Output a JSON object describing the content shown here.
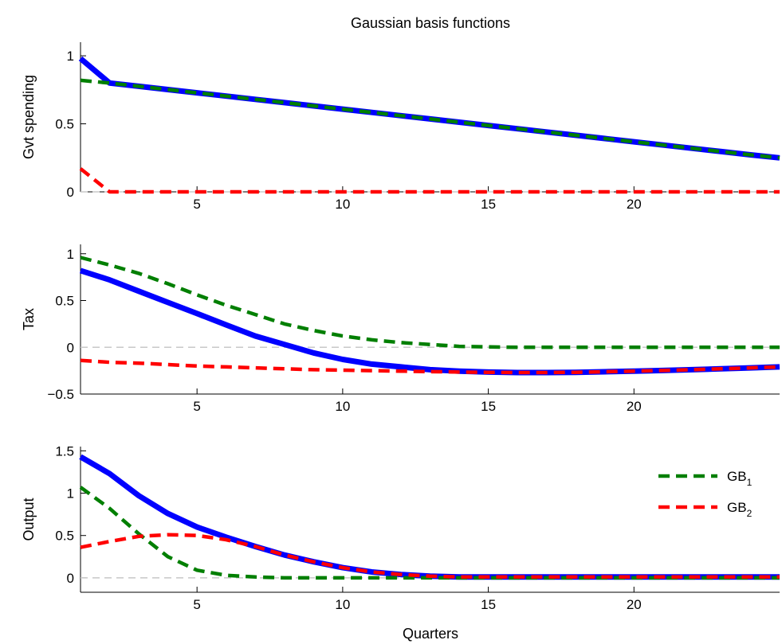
{
  "title": "Gaussian basis functions",
  "xlabel": "Quarters",
  "colors": {
    "total": "#0000ff",
    "gb1": "#007f00",
    "gb2": "#ff0000",
    "zero": "#c8c8c8"
  },
  "legend": {
    "placement": "upper-right of bottom panel",
    "items": [
      {
        "base": "GB",
        "sub": "1",
        "color": "#007f00"
      },
      {
        "base": "GB",
        "sub": "2",
        "color": "#ff0000"
      }
    ]
  },
  "chart_data": [
    {
      "type": "line",
      "ylabel": "Gvt spending",
      "xlim": [
        1,
        25
      ],
      "ylim": [
        0,
        1.1
      ],
      "yticks": [
        0,
        0.5,
        1
      ],
      "ytick_labels": [
        "0",
        "0.5",
        "1"
      ],
      "xticks": [
        5,
        10,
        15,
        20
      ],
      "xtick_labels": [
        "5",
        "10",
        "15",
        "20"
      ],
      "zero_line": true,
      "x": [
        1,
        2,
        3,
        4,
        5,
        6,
        7,
        8,
        9,
        10,
        11,
        12,
        13,
        14,
        15,
        16,
        17,
        18,
        19,
        20,
        21,
        22,
        23,
        24,
        25
      ],
      "series": [
        {
          "key": "total",
          "values": [
            0.98,
            0.8,
            0.776,
            0.752,
            0.728,
            0.704,
            0.68,
            0.656,
            0.632,
            0.608,
            0.584,
            0.56,
            0.536,
            0.512,
            0.488,
            0.464,
            0.44,
            0.416,
            0.392,
            0.368,
            0.344,
            0.32,
            0.296,
            0.272,
            0.25
          ]
        },
        {
          "key": "gb1",
          "values": [
            0.82,
            0.8,
            0.776,
            0.752,
            0.728,
            0.704,
            0.68,
            0.656,
            0.632,
            0.608,
            0.584,
            0.56,
            0.536,
            0.512,
            0.488,
            0.464,
            0.44,
            0.416,
            0.392,
            0.368,
            0.344,
            0.32,
            0.296,
            0.272,
            0.25
          ]
        },
        {
          "key": "gb2",
          "values": [
            0.17,
            0,
            0,
            0,
            0,
            0,
            0,
            0,
            0,
            0,
            0,
            0,
            0,
            0,
            0,
            0,
            0,
            0,
            0,
            0,
            0,
            0,
            0,
            0,
            0
          ]
        }
      ]
    },
    {
      "type": "line",
      "ylabel": "Tax",
      "xlim": [
        1,
        25
      ],
      "ylim": [
        -0.5,
        1.1
      ],
      "yticks": [
        -0.5,
        0,
        0.5,
        1
      ],
      "ytick_labels": [
        "−0.5",
        "0",
        "0.5",
        "1"
      ],
      "xticks": [
        5,
        10,
        15,
        20
      ],
      "xtick_labels": [
        "5",
        "10",
        "15",
        "20"
      ],
      "zero_line": true,
      "x": [
        1,
        2,
        3,
        4,
        5,
        6,
        7,
        8,
        9,
        10,
        11,
        12,
        13,
        14,
        15,
        16,
        17,
        18,
        19,
        20,
        21,
        22,
        23,
        24,
        25
      ],
      "series": [
        {
          "key": "total",
          "values": [
            0.82,
            0.72,
            0.6,
            0.48,
            0.36,
            0.24,
            0.12,
            0.03,
            -0.06,
            -0.13,
            -0.18,
            -0.21,
            -0.24,
            -0.255,
            -0.265,
            -0.27,
            -0.27,
            -0.268,
            -0.262,
            -0.255,
            -0.248,
            -0.24,
            -0.23,
            -0.22,
            -0.21
          ]
        },
        {
          "key": "gb1",
          "values": [
            0.96,
            0.88,
            0.79,
            0.68,
            0.56,
            0.45,
            0.35,
            0.25,
            0.18,
            0.12,
            0.08,
            0.05,
            0.03,
            0.01,
            0.005,
            0,
            0,
            0,
            0,
            0,
            0,
            0,
            0,
            0,
            0
          ]
        },
        {
          "key": "gb2",
          "values": [
            -0.14,
            -0.16,
            -0.17,
            -0.185,
            -0.2,
            -0.21,
            -0.22,
            -0.23,
            -0.24,
            -0.245,
            -0.25,
            -0.255,
            -0.26,
            -0.265,
            -0.268,
            -0.27,
            -0.27,
            -0.268,
            -0.262,
            -0.255,
            -0.248,
            -0.24,
            -0.23,
            -0.22,
            -0.21
          ]
        }
      ]
    },
    {
      "type": "line",
      "ylabel": "Output",
      "xlim": [
        1,
        25
      ],
      "ylim": [
        -0.17,
        1.55
      ],
      "yticks": [
        0,
        0.5,
        1,
        1.5
      ],
      "ytick_labels": [
        "0",
        "0.5",
        "1",
        "1.5"
      ],
      "xticks": [
        5,
        10,
        15,
        20
      ],
      "xtick_labels": [
        "5",
        "10",
        "15",
        "20"
      ],
      "zero_line": true,
      "x": [
        1,
        2,
        3,
        4,
        5,
        6,
        7,
        8,
        9,
        10,
        11,
        12,
        13,
        14,
        15,
        16,
        17,
        18,
        19,
        20,
        21,
        22,
        23,
        24,
        25
      ],
      "series": [
        {
          "key": "total",
          "values": [
            1.43,
            1.23,
            0.97,
            0.76,
            0.6,
            0.48,
            0.37,
            0.27,
            0.19,
            0.12,
            0.07,
            0.04,
            0.02,
            0.01,
            0.01,
            0.01,
            0.01,
            0.01,
            0.01,
            0.01,
            0.01,
            0.01,
            0.01,
            0.01,
            0.01
          ]
        },
        {
          "key": "gb1",
          "values": [
            1.07,
            0.82,
            0.52,
            0.25,
            0.09,
            0.03,
            0.01,
            0,
            0,
            0,
            0,
            0,
            0,
            0,
            0,
            0,
            0,
            0,
            0,
            0,
            0,
            0,
            0,
            0,
            0
          ]
        },
        {
          "key": "gb2",
          "values": [
            0.36,
            0.43,
            0.49,
            0.51,
            0.5,
            0.45,
            0.37,
            0.27,
            0.19,
            0.12,
            0.07,
            0.04,
            0.02,
            0.01,
            0.01,
            0.01,
            0.01,
            0.01,
            0.01,
            0.01,
            0.01,
            0.01,
            0.01,
            0.01,
            0.01
          ]
        }
      ]
    }
  ]
}
